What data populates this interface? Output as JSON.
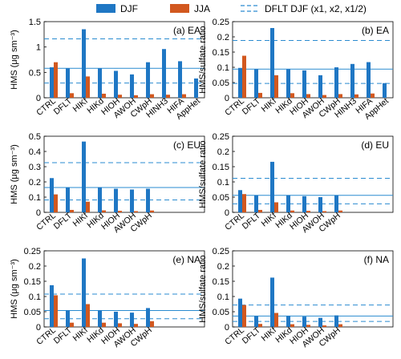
{
  "legend": {
    "djf_label": "DJF",
    "jja_label": "JJA",
    "dflt_label": "DFLT DJF (x1, x2, x1/2)",
    "placement": "top"
  },
  "colors": {
    "djf": "#1f77c4",
    "jja": "#d2581f",
    "reference_line": "#2a8bd0"
  },
  "chart_data": [
    {
      "type": "bar",
      "panel": "(a) EA",
      "ylabel": "HMS (μg sm⁻³)",
      "ylim": [
        0,
        1.5
      ],
      "yticks": [
        0,
        0.5,
        1,
        1.5
      ],
      "categories": [
        "CTRL",
        "DFLT",
        "HIKf",
        "HIKd",
        "HIOH",
        "AWOH",
        "CWpH",
        "HINH3",
        "HIFA",
        "AppHet"
      ],
      "series": [
        {
          "name": "DJF",
          "values": [
            0.6,
            0.58,
            1.35,
            0.58,
            0.53,
            0.46,
            0.7,
            0.96,
            0.72,
            0.38
          ]
        },
        {
          "name": "JJA",
          "values": [
            0.7,
            0.09,
            0.42,
            0.08,
            0.06,
            0.05,
            0.07,
            0.06,
            0.07,
            null
          ]
        }
      ],
      "reference_lines": [
        0.58,
        1.16,
        0.29
      ]
    },
    {
      "type": "bar",
      "panel": "(b) EA",
      "ylabel": "HMS/sulfate ratio",
      "ylim": [
        0,
        0.25
      ],
      "yticks": [
        0,
        0.05,
        0.1,
        0.15,
        0.2,
        0.25
      ],
      "categories": [
        "CTRL",
        "DFLT",
        "HIKf",
        "HIKd",
        "HIOH",
        "AWOH",
        "CWpH",
        "HINH3",
        "HIFA",
        "AppHet"
      ],
      "series": [
        {
          "name": "DJF",
          "values": [
            0.098,
            0.094,
            0.229,
            0.094,
            0.09,
            0.074,
            0.1,
            0.111,
            0.117,
            0.048
          ]
        },
        {
          "name": "JJA",
          "values": [
            0.138,
            0.016,
            0.074,
            0.015,
            0.012,
            0.009,
            0.012,
            0.011,
            0.014,
            null
          ]
        }
      ],
      "reference_lines": [
        0.094,
        0.188,
        0.047
      ]
    },
    {
      "type": "bar",
      "panel": "(c) EU",
      "ylabel": "HMS (μg sm⁻³)",
      "ylim": [
        0,
        0.5
      ],
      "yticks": [
        0,
        0.1,
        0.2,
        0.3,
        0.4,
        0.5
      ],
      "categories": [
        "CTRL",
        "DFLT",
        "HIKf",
        "HIKd",
        "HIOH",
        "AWOH",
        "CWpH"
      ],
      "series": [
        {
          "name": "DJF",
          "values": [
            0.225,
            0.163,
            0.465,
            0.165,
            0.155,
            0.15,
            0.155
          ]
        },
        {
          "name": "JJA",
          "values": [
            0.118,
            0.016,
            0.07,
            0.013,
            0.01,
            0.008,
            0.012
          ]
        }
      ],
      "reference_lines": [
        0.163,
        0.326,
        0.0815
      ]
    },
    {
      "type": "bar",
      "panel": "(d) EU",
      "ylabel": "HMS/sulfate ratio",
      "ylim": [
        0,
        0.25
      ],
      "yticks": [
        0,
        0.05,
        0.1,
        0.15,
        0.2,
        0.25
      ],
      "categories": [
        "CTRL",
        "DFLT",
        "HIKf",
        "HIKd",
        "HIOH",
        "AWOH",
        "CWpH"
      ],
      "series": [
        {
          "name": "DJF",
          "values": [
            0.073,
            0.056,
            0.166,
            0.056,
            0.053,
            0.05,
            0.056
          ]
        },
        {
          "name": "JJA",
          "values": [
            0.06,
            0.008,
            0.033,
            0.006,
            0.005,
            0.004,
            0.006
          ]
        }
      ],
      "reference_lines": [
        0.056,
        0.112,
        0.028
      ]
    },
    {
      "type": "bar",
      "panel": "(e) NA",
      "ylabel": "HMS (μg sm⁻³)",
      "ylim": [
        0,
        0.25
      ],
      "yticks": [
        0,
        0.05,
        0.1,
        0.15,
        0.2,
        0.25
      ],
      "categories": [
        "CTRL",
        "DFLT",
        "HIKf",
        "HIKd",
        "HIOH",
        "AWOH",
        "CWpH"
      ],
      "series": [
        {
          "name": "DJF",
          "values": [
            0.137,
            0.054,
            0.225,
            0.054,
            0.05,
            0.047,
            0.062
          ]
        },
        {
          "name": "JJA",
          "values": [
            0.104,
            0.014,
            0.075,
            0.014,
            0.012,
            0.01,
            0.019
          ]
        }
      ],
      "reference_lines": [
        0.054,
        0.108,
        0.027
      ]
    },
    {
      "type": "bar",
      "panel": "(f) NA",
      "ylabel": "HMS/sulfate ratio",
      "ylim": [
        0,
        0.25
      ],
      "yticks": [
        0,
        0.05,
        0.1,
        0.15,
        0.2,
        0.25
      ],
      "categories": [
        "CTRL",
        "DFLT",
        "HIKf",
        "HIKd",
        "HIOH",
        "AWOH",
        "CWpH"
      ],
      "series": [
        {
          "name": "DJF",
          "values": [
            0.093,
            0.036,
            0.162,
            0.036,
            0.034,
            0.03,
            0.038
          ]
        },
        {
          "name": "JJA",
          "values": [
            0.072,
            0.01,
            0.046,
            0.009,
            0.007,
            0.005,
            0.009
          ]
        }
      ],
      "reference_lines": [
        0.036,
        0.072,
        0.018
      ]
    }
  ]
}
